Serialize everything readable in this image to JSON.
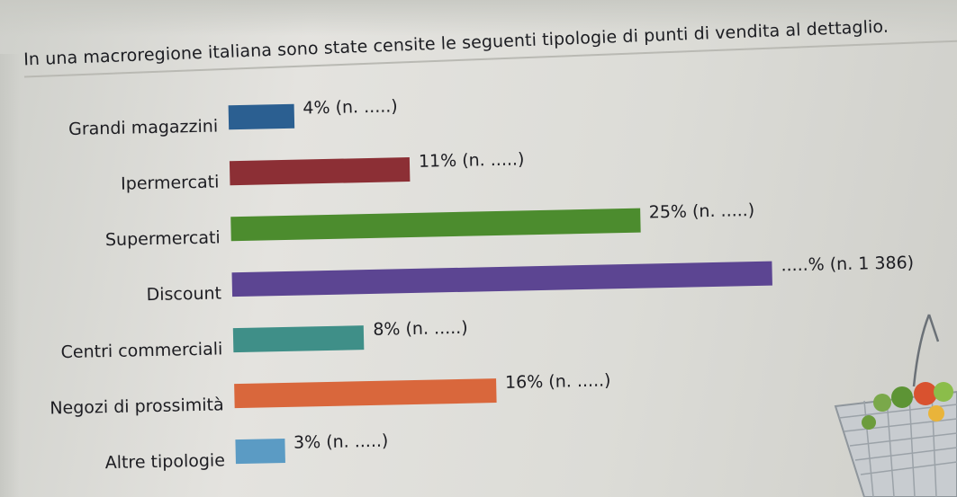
{
  "header": {
    "intro": "In una macroregione italiana sono state censite le seguenti tipologie di punti di vendita al dettaglio."
  },
  "chart_data": {
    "type": "bar",
    "orientation": "horizontal",
    "categories": [
      "Grandi magazzini",
      "Ipermercati",
      "Supermercati",
      "Discount",
      "Centri commerciali",
      "Negozi di prossimità",
      "Altre tipologie"
    ],
    "values": [
      4,
      11,
      25,
      33,
      8,
      16,
      3
    ],
    "value_labels": [
      "4% (n. .....)",
      "11% (n. .....)",
      "25% (n. .....)",
      ".....% (n. 1 386)",
      "8% (n. .....)",
      "16% (n. .....)",
      "3% (n. .....)"
    ],
    "colors": [
      "#2b5f91",
      "#8c2f35",
      "#4c8c2e",
      "#5c4592",
      "#3f8f88",
      "#d9673c",
      "#5b9bc4"
    ],
    "xlim": [
      0,
      33
    ],
    "grid": false,
    "legend": "none"
  }
}
